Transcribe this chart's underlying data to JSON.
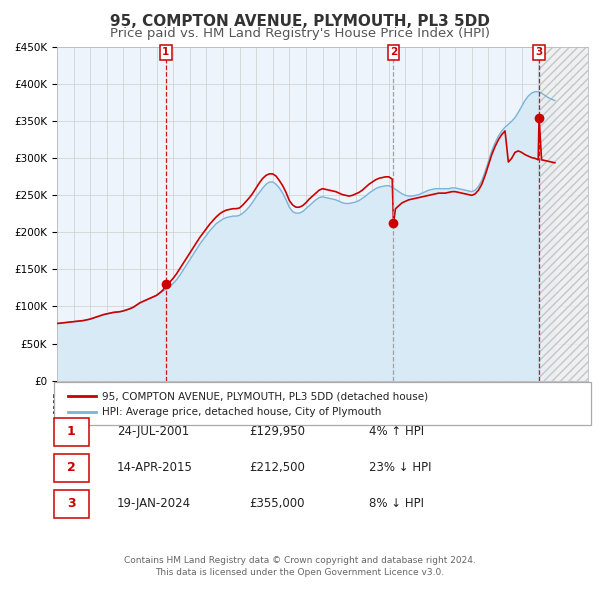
{
  "title": "95, COMPTON AVENUE, PLYMOUTH, PL3 5DD",
  "subtitle": "Price paid vs. HM Land Registry's House Price Index (HPI)",
  "title_fontsize": 11,
  "subtitle_fontsize": 9.5,
  "x_start_year": 1995,
  "x_end_year": 2027,
  "ylim": [
    0,
    450000
  ],
  "yticks": [
    0,
    50000,
    100000,
    150000,
    200000,
    250000,
    300000,
    350000,
    400000,
    450000
  ],
  "ytick_labels": [
    "£0",
    "£50K",
    "£100K",
    "£150K",
    "£200K",
    "£250K",
    "£300K",
    "£350K",
    "£400K",
    "£450K"
  ],
  "hpi_color": "#7ab4d8",
  "hpi_fill_color": "#d8eaf6",
  "property_color": "#cc0000",
  "property_linewidth": 1.2,
  "hpi_linewidth": 1.0,
  "grid_color": "#cccccc",
  "bg_color": "#ffffff",
  "plot_bg_color": "#edf4fb",
  "sale_prices": [
    129950,
    212500,
    355000
  ],
  "sale_labels": [
    "1",
    "2",
    "3"
  ],
  "sale_hpi_pct": [
    "4% ↑ HPI",
    "23% ↓ HPI",
    "8% ↓ HPI"
  ],
  "sale_date_strs": [
    "24-JUL-2001",
    "14-APR-2015",
    "19-JAN-2024"
  ],
  "sale_price_strs": [
    "£129,950",
    "£212,500",
    "£355,000"
  ],
  "sale_years": [
    2001.558,
    2015.278,
    2024.052
  ],
  "vline_colors": [
    "#cc0000",
    "#999999",
    "#cc0000"
  ],
  "legend_line1": "95, COMPTON AVENUE, PLYMOUTH, PL3 5DD (detached house)",
  "legend_line2": "HPI: Average price, detached house, City of Plymouth",
  "footnote": "Contains HM Land Registry data © Crown copyright and database right 2024.\nThis data is licensed under the Open Government Licence v3.0.",
  "hpi_data_x": [
    1995.0,
    1995.2,
    1995.4,
    1995.6,
    1995.8,
    1996.0,
    1996.2,
    1996.4,
    1996.6,
    1996.8,
    1997.0,
    1997.2,
    1997.4,
    1997.6,
    1997.8,
    1998.0,
    1998.2,
    1998.4,
    1998.6,
    1998.8,
    1999.0,
    1999.2,
    1999.4,
    1999.6,
    1999.8,
    2000.0,
    2000.2,
    2000.4,
    2000.6,
    2000.8,
    2001.0,
    2001.2,
    2001.4,
    2001.6,
    2001.8,
    2002.0,
    2002.2,
    2002.4,
    2002.6,
    2002.8,
    2003.0,
    2003.2,
    2003.4,
    2003.6,
    2003.8,
    2004.0,
    2004.2,
    2004.4,
    2004.6,
    2004.8,
    2005.0,
    2005.2,
    2005.4,
    2005.6,
    2005.8,
    2006.0,
    2006.2,
    2006.4,
    2006.6,
    2006.8,
    2007.0,
    2007.2,
    2007.4,
    2007.6,
    2007.8,
    2008.0,
    2008.2,
    2008.4,
    2008.6,
    2008.8,
    2009.0,
    2009.2,
    2009.4,
    2009.6,
    2009.8,
    2010.0,
    2010.2,
    2010.4,
    2010.6,
    2010.8,
    2011.0,
    2011.2,
    2011.4,
    2011.6,
    2011.8,
    2012.0,
    2012.2,
    2012.4,
    2012.6,
    2012.8,
    2013.0,
    2013.2,
    2013.4,
    2013.6,
    2013.8,
    2014.0,
    2014.2,
    2014.4,
    2014.6,
    2014.8,
    2015.0,
    2015.2,
    2015.4,
    2015.6,
    2015.8,
    2016.0,
    2016.2,
    2016.4,
    2016.6,
    2016.8,
    2017.0,
    2017.2,
    2017.4,
    2017.6,
    2017.8,
    2018.0,
    2018.2,
    2018.4,
    2018.6,
    2018.8,
    2019.0,
    2019.2,
    2019.4,
    2019.6,
    2019.8,
    2020.0,
    2020.2,
    2020.4,
    2020.6,
    2020.8,
    2021.0,
    2021.2,
    2021.4,
    2021.6,
    2021.8,
    2022.0,
    2022.2,
    2022.4,
    2022.6,
    2022.8,
    2023.0,
    2023.2,
    2023.4,
    2023.6,
    2023.8,
    2024.0,
    2024.2,
    2024.4,
    2024.6,
    2024.8,
    2025.0
  ],
  "hpi_data_y": [
    77000,
    77500,
    78000,
    78500,
    79000,
    79500,
    80000,
    80500,
    81000,
    82000,
    83000,
    84500,
    86000,
    87500,
    89000,
    90000,
    91000,
    92000,
    92500,
    93000,
    94000,
    95500,
    97000,
    99000,
    102000,
    105000,
    107000,
    109000,
    111000,
    113000,
    115000,
    118000,
    121000,
    124000,
    127000,
    131000,
    136000,
    142000,
    149000,
    156000,
    163000,
    170000,
    177000,
    184000,
    190000,
    196000,
    202000,
    207000,
    212000,
    215000,
    218000,
    220000,
    221000,
    222000,
    222000,
    223000,
    226000,
    230000,
    235000,
    241000,
    248000,
    254000,
    260000,
    265000,
    268000,
    268000,
    265000,
    260000,
    253000,
    244000,
    234000,
    228000,
    226000,
    226000,
    228000,
    232000,
    236000,
    240000,
    244000,
    247000,
    248000,
    247000,
    246000,
    245000,
    244000,
    242000,
    240000,
    239000,
    239000,
    240000,
    241000,
    243000,
    246000,
    249000,
    253000,
    256000,
    259000,
    261000,
    262000,
    263000,
    263000,
    261000,
    258000,
    255000,
    252000,
    250000,
    249000,
    249000,
    250000,
    251000,
    253000,
    255000,
    257000,
    258000,
    259000,
    259000,
    259000,
    259000,
    259000,
    260000,
    260000,
    259000,
    258000,
    257000,
    256000,
    255000,
    257000,
    262000,
    270000,
    282000,
    296000,
    310000,
    321000,
    330000,
    337000,
    342000,
    346000,
    350000,
    355000,
    362000,
    370000,
    378000,
    384000,
    388000,
    390000,
    390000,
    388000,
    385000,
    382000,
    380000,
    378000
  ],
  "prop_data_x": [
    1995.0,
    1995.2,
    1995.4,
    1995.6,
    1995.8,
    1996.0,
    1996.2,
    1996.4,
    1996.6,
    1996.8,
    1997.0,
    1997.2,
    1997.4,
    1997.6,
    1997.8,
    1998.0,
    1998.2,
    1998.4,
    1998.6,
    1998.8,
    1999.0,
    1999.2,
    1999.4,
    1999.6,
    1999.8,
    2000.0,
    2000.2,
    2000.4,
    2000.6,
    2000.8,
    2001.0,
    2001.2,
    2001.4,
    2001.558,
    2001.8,
    2002.0,
    2002.2,
    2002.4,
    2002.6,
    2002.8,
    2003.0,
    2003.2,
    2003.4,
    2003.6,
    2003.8,
    2004.0,
    2004.2,
    2004.4,
    2004.6,
    2004.8,
    2005.0,
    2005.2,
    2005.4,
    2005.6,
    2005.8,
    2006.0,
    2006.2,
    2006.4,
    2006.6,
    2006.8,
    2007.0,
    2007.2,
    2007.4,
    2007.6,
    2007.8,
    2008.0,
    2008.2,
    2008.4,
    2008.6,
    2008.8,
    2009.0,
    2009.2,
    2009.4,
    2009.6,
    2009.8,
    2010.0,
    2010.2,
    2010.4,
    2010.6,
    2010.8,
    2011.0,
    2011.2,
    2011.4,
    2011.6,
    2011.8,
    2012.0,
    2012.2,
    2012.4,
    2012.6,
    2012.8,
    2013.0,
    2013.2,
    2013.4,
    2013.6,
    2013.8,
    2014.0,
    2014.2,
    2014.4,
    2014.6,
    2014.8,
    2015.0,
    2015.2,
    2015.278,
    2015.4,
    2015.6,
    2015.8,
    2016.0,
    2016.2,
    2016.4,
    2016.6,
    2016.8,
    2017.0,
    2017.2,
    2017.4,
    2017.6,
    2017.8,
    2018.0,
    2018.2,
    2018.4,
    2018.6,
    2018.8,
    2019.0,
    2019.2,
    2019.4,
    2019.6,
    2019.8,
    2020.0,
    2020.2,
    2020.4,
    2020.6,
    2020.8,
    2021.0,
    2021.2,
    2021.4,
    2021.6,
    2021.8,
    2022.0,
    2022.2,
    2022.4,
    2022.6,
    2022.8,
    2023.0,
    2023.2,
    2023.4,
    2023.6,
    2023.8,
    2024.0,
    2024.052,
    2024.2,
    2024.4,
    2024.6,
    2024.8,
    2025.0
  ],
  "prop_data_y": [
    77000,
    77500,
    78000,
    78500,
    79000,
    79500,
    80000,
    80500,
    81000,
    82000,
    83000,
    84500,
    86000,
    87500,
    89000,
    90000,
    91000,
    92000,
    92500,
    93000,
    94000,
    95500,
    97000,
    99000,
    102000,
    105000,
    107000,
    109000,
    111000,
    113000,
    115000,
    118500,
    122500,
    129950,
    133000,
    138000,
    144000,
    151000,
    158000,
    165000,
    172000,
    179000,
    186000,
    193000,
    199000,
    205000,
    211000,
    216000,
    221000,
    225000,
    228000,
    230000,
    231000,
    232000,
    232000,
    233000,
    237000,
    242000,
    247000,
    253000,
    260000,
    267000,
    273000,
    277000,
    279000,
    279000,
    276000,
    270000,
    263000,
    254000,
    243000,
    237000,
    234000,
    234000,
    236000,
    240000,
    245000,
    249000,
    253000,
    257000,
    259000,
    258000,
    257000,
    256000,
    255000,
    253000,
    251000,
    250000,
    249000,
    250000,
    252000,
    254000,
    257000,
    261000,
    265000,
    268000,
    271000,
    273000,
    274000,
    275000,
    275000,
    272000,
    212500,
    232000,
    236000,
    240000,
    242000,
    244000,
    245000,
    246000,
    247000,
    248000,
    249000,
    250000,
    251000,
    252000,
    253000,
    253000,
    253000,
    254000,
    255000,
    255000,
    254000,
    253000,
    252000,
    251000,
    250000,
    252000,
    257000,
    265000,
    277000,
    291000,
    305000,
    316000,
    325000,
    332000,
    337000,
    295000,
    300000,
    308000,
    310000,
    308000,
    305000,
    303000,
    301000,
    300000,
    298000,
    355000,
    298000,
    297000,
    296000,
    295000,
    294000
  ]
}
